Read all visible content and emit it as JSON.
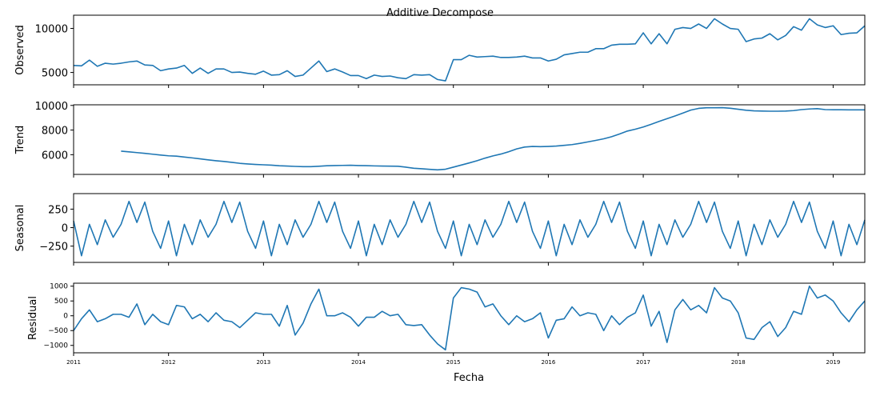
{
  "chart_data": {
    "type": "line",
    "title": "Additive Decompose",
    "xlabel": "Fecha",
    "color": "#1f77b4",
    "x_start": "2011-01",
    "x_end": "2019-05",
    "x_ticks": [
      "2011",
      "2012",
      "2013",
      "2014",
      "2015",
      "2016",
      "2017",
      "2018",
      "2019"
    ],
    "panels": [
      {
        "name": "Observed",
        "ylabel": "Observed",
        "ylim": [
          3600,
          11500
        ],
        "yticks": [
          5000,
          10000
        ],
        "ytick_labels": [
          "5000",
          "10000"
        ],
        "values": [
          5800,
          5750,
          6400,
          5700,
          6050,
          5950,
          6050,
          6200,
          6300,
          5850,
          5800,
          5200,
          5400,
          5500,
          5800,
          4900,
          5500,
          4900,
          5400,
          5400,
          5000,
          5050,
          4900,
          4800,
          5150,
          4700,
          4750,
          5200,
          4550,
          4700,
          5500,
          6300,
          5100,
          5400,
          5050,
          4650,
          4650,
          4300,
          4700,
          4550,
          4600,
          4400,
          4300,
          4750,
          4700,
          4750,
          4200,
          4050,
          6450,
          6450,
          6950,
          6750,
          6800,
          6850,
          6700,
          6700,
          6750,
          6850,
          6650,
          6650,
          6300,
          6500,
          7000,
          7150,
          7300,
          7300,
          7700,
          7700,
          8100,
          8200,
          8200,
          8250,
          9500,
          8250,
          9400,
          8250,
          9900,
          10100,
          10000,
          10500,
          10000,
          11100,
          10500,
          10000,
          9900,
          8500,
          8800,
          8900,
          9400,
          8700,
          9200,
          10200,
          9800,
          11100,
          10400,
          10100,
          10300,
          9300,
          9450,
          9500,
          10300
        ]
      },
      {
        "name": "Trend",
        "ylabel": "Trend",
        "ylim": [
          4400,
          10050
        ],
        "yticks": [
          6000,
          8000,
          10000
        ],
        "ytick_labels": [
          "6000",
          "8000",
          "10000"
        ],
        "values": [
          null,
          null,
          null,
          null,
          null,
          null,
          6290,
          6230,
          6170,
          6110,
          6040,
          5970,
          5910,
          5880,
          5810,
          5740,
          5660,
          5580,
          5510,
          5450,
          5380,
          5300,
          5250,
          5210,
          5180,
          5150,
          5100,
          5080,
          5050,
          5030,
          5030,
          5060,
          5100,
          5120,
          5130,
          5140,
          5120,
          5110,
          5090,
          5080,
          5070,
          5060,
          4990,
          4900,
          4860,
          4810,
          4770,
          4820,
          4990,
          5160,
          5330,
          5510,
          5720,
          5900,
          6050,
          6240,
          6470,
          6620,
          6670,
          6650,
          6670,
          6700,
          6760,
          6820,
          6920,
          7040,
          7160,
          7290,
          7460,
          7680,
          7920,
          8070,
          8250,
          8470,
          8700,
          8920,
          9140,
          9380,
          9620,
          9760,
          9810,
          9810,
          9820,
          9770,
          9690,
          9610,
          9560,
          9540,
          9530,
          9530,
          9540,
          9580,
          9660,
          9710,
          9740,
          9660,
          9650,
          9650,
          9640,
          9640,
          9640
        ]
      },
      {
        "name": "Seasonal",
        "ylabel": "Seasonal",
        "ylim": [
          -470,
          460
        ],
        "yticks": [
          -250,
          0,
          250
        ],
        "ytick_labels": [
          "−250",
          "0",
          "250"
        ],
        "values": [
          90,
          -380,
          45,
          -230,
          105,
          -130,
          45,
          355,
          70,
          345,
          -50,
          -280,
          90,
          -380,
          45,
          -230,
          105,
          -130,
          45,
          355,
          70,
          345,
          -50,
          -280,
          90,
          -380,
          45,
          -230,
          105,
          -130,
          45,
          355,
          70,
          345,
          -50,
          -280,
          90,
          -380,
          45,
          -230,
          105,
          -130,
          45,
          355,
          70,
          345,
          -50,
          -280,
          90,
          -380,
          45,
          -230,
          105,
          -130,
          45,
          355,
          70,
          345,
          -50,
          -280,
          90,
          -380,
          45,
          -230,
          105,
          -130,
          45,
          355,
          70,
          345,
          -50,
          -280,
          90,
          -380,
          45,
          -230,
          105,
          -130,
          45,
          355,
          70,
          345,
          -50,
          -280,
          90,
          -380,
          45,
          -230,
          105,
          -130,
          45,
          355,
          70,
          345,
          -50,
          -280,
          90,
          -380,
          45,
          -230,
          105
        ]
      },
      {
        "name": "Residual",
        "ylabel": "Residual",
        "ylim": [
          -1250,
          1100
        ],
        "yticks": [
          -1000,
          -500,
          0,
          500,
          1000
        ],
        "ytick_labels": [
          "−1000",
          "−500",
          "0",
          "500",
          "1000"
        ],
        "values": [
          -500,
          -100,
          200,
          -200,
          -100,
          50,
          50,
          -50,
          400,
          -300,
          50,
          -200,
          -300,
          350,
          300,
          -100,
          50,
          -200,
          100,
          -150,
          -200,
          -400,
          -150,
          100,
          50,
          50,
          -350,
          350,
          -650,
          -250,
          400,
          900,
          0,
          0,
          100,
          -50,
          -350,
          -50,
          -50,
          150,
          0,
          50,
          -300,
          -330,
          -300,
          -650,
          -950,
          -1150,
          600,
          950,
          900,
          800,
          300,
          400,
          0,
          -300,
          0,
          -200,
          -100,
          100,
          -750,
          -150,
          -100,
          300,
          0,
          100,
          50,
          -500,
          0,
          -300,
          -50,
          100,
          700,
          -350,
          150,
          -900,
          200,
          550,
          200,
          350,
          100,
          950,
          600,
          500,
          100,
          -750,
          -800,
          -400,
          -200,
          -700,
          -400,
          150,
          50,
          1000,
          600,
          700,
          500,
          100,
          -200,
          200,
          500
        ]
      }
    ]
  }
}
